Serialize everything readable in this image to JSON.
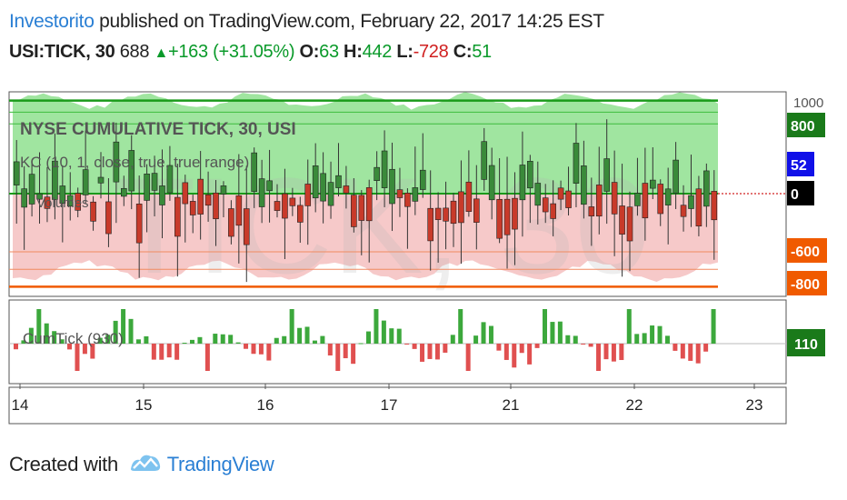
{
  "header": {
    "author": "Investorito",
    "published": " published on TradingView.com, February 22, 2017 14:25 EST"
  },
  "ticker": {
    "symbol": "USI:TICK, 30",
    "last": "688",
    "change": "+163 (+31.05%)",
    "o_label": "O:",
    "o_value": "63",
    "h_label": "H:",
    "h_value": "442",
    "l_label": "L:",
    "l_value": "-728",
    "c_label": "C:",
    "c_value": "51"
  },
  "main_pane": {
    "title": "NYSE CUMULATIVE TICK, 30, USI",
    "indicator": "KC (10, 1, close, true, true range)",
    "indicator2": "Volumes",
    "watermark": "TICK, 30"
  },
  "price_scale": {
    "top_label": "1000",
    "badges": [
      {
        "text": "800",
        "color": "#1a7a1a"
      },
      {
        "text": "52",
        "color": "#1010e8"
      },
      {
        "text": "0",
        "color": "#000000"
      },
      {
        "text": "-600",
        "color": "#f05a00"
      },
      {
        "text": "-800",
        "color": "#f05a00"
      }
    ]
  },
  "sub_pane": {
    "title": "CumTick (930)",
    "badge": "110",
    "badge_color": "#1a7a1a"
  },
  "x_axis": {
    "labels": [
      "14",
      "15",
      "16",
      "17",
      "21",
      "22",
      "23"
    ]
  },
  "colors": {
    "up": "#3a8a3a",
    "down": "#c83a2a",
    "green_fill": "#8fe08f",
    "red_fill": "#f4c0c0",
    "orange_line": "#f05a00"
  },
  "footer": {
    "created_with": "Created with",
    "brand": "TradingView"
  }
}
